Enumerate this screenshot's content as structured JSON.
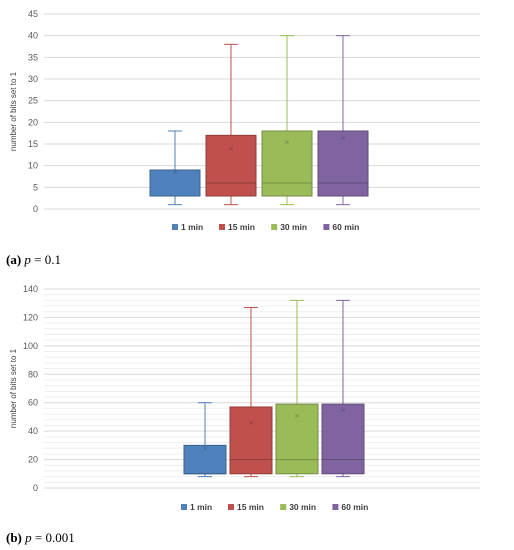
{
  "chart_data": [
    {
      "type": "box",
      "ylabel": "number of bits set to 1",
      "ylim": [
        0,
        45
      ],
      "ytick_step": 5,
      "grid": true,
      "legend_position": "bottom",
      "series": [
        {
          "name": "1 min",
          "color": "#4f81bd",
          "min": 1,
          "q1": 3,
          "median": 3,
          "q3": 9,
          "max": 18,
          "mean": 8.5
        },
        {
          "name": "15 min",
          "color": "#c0504d",
          "min": 1,
          "q1": 3,
          "median": 6,
          "q3": 17,
          "max": 38,
          "mean": 14
        },
        {
          "name": "30 min",
          "color": "#9bbb59",
          "min": 1,
          "q1": 3,
          "median": 6,
          "q3": 18,
          "max": 40,
          "mean": 15.5
        },
        {
          "name": "60 min",
          "color": "#8064a2",
          "min": 1,
          "q1": 3,
          "median": 6,
          "q3": 18,
          "max": 40,
          "mean": 16.5
        }
      ],
      "caption": {
        "tag": "(a)",
        "var": "p",
        "eq": " = 0.1"
      }
    },
    {
      "type": "box",
      "ylabel": "number of bits set to 1",
      "ylim": [
        0,
        140
      ],
      "ytick_step": 20,
      "grid": true,
      "legend_position": "bottom",
      "series": [
        {
          "name": "1 min",
          "color": "#4f81bd",
          "min": 8,
          "q1": 10,
          "median": 10,
          "q3": 30,
          "max": 60,
          "mean": 28
        },
        {
          "name": "15 min",
          "color": "#c0504d",
          "min": 8,
          "q1": 10,
          "median": 20,
          "q3": 57,
          "max": 127,
          "mean": 46
        },
        {
          "name": "30 min",
          "color": "#9bbb59",
          "min": 8,
          "q1": 10,
          "median": 20,
          "q3": 59,
          "max": 132,
          "mean": 51
        },
        {
          "name": "60 min",
          "color": "#8064a2",
          "min": 8,
          "q1": 10,
          "median": 20,
          "q3": 59,
          "max": 132,
          "mean": 55
        }
      ],
      "caption": {
        "tag": "(b)",
        "var": "p",
        "eq": " = 0.001"
      }
    }
  ]
}
